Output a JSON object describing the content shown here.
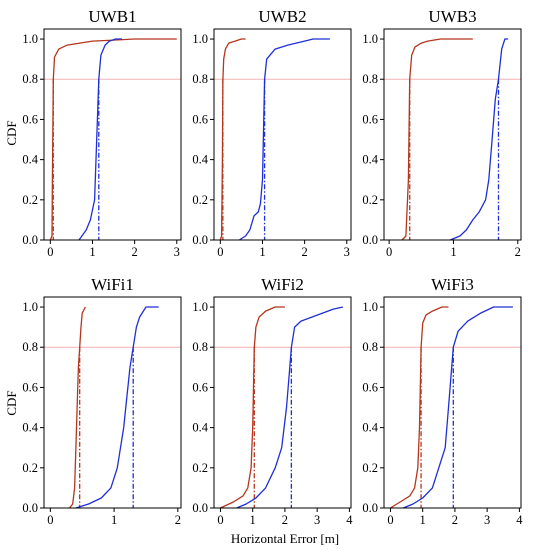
{
  "figure": {
    "ylabel": "CDF",
    "xlabel": "Horizontal Error [m]"
  },
  "colors": {
    "red": "#b5361d",
    "blue": "#1f2fd6",
    "ref": "#f4b4b4"
  },
  "chart_data": [
    {
      "type": "line",
      "title": "UWB1",
      "xlim": [
        -0.15,
        3.1
      ],
      "ylim": [
        0,
        1.05
      ],
      "xticks": [
        0,
        1,
        2,
        3
      ],
      "yticks": [
        0.0,
        0.2,
        0.4,
        0.6,
        0.8,
        1.0
      ],
      "reference_y": 0.8,
      "series": [
        {
          "color": "red",
          "x": [
            0.0,
            0.04,
            0.05,
            0.07,
            0.1,
            0.2,
            0.4,
            0.7,
            1.0,
            1.5,
            2.0,
            3.0
          ],
          "y": [
            0,
            0.02,
            0.3,
            0.8,
            0.91,
            0.95,
            0.97,
            0.98,
            0.99,
            0.995,
            1.0,
            1.0
          ],
          "cdf80": 0.07
        },
        {
          "color": "blue",
          "x": [
            0.68,
            0.75,
            0.85,
            0.95,
            1.05,
            1.1,
            1.15,
            1.2,
            1.3,
            1.4,
            1.55,
            1.7
          ],
          "y": [
            0,
            0.02,
            0.05,
            0.1,
            0.2,
            0.5,
            0.8,
            0.92,
            0.97,
            0.99,
            1.0,
            1.0
          ],
          "cdf80": 1.15
        }
      ]
    },
    {
      "type": "line",
      "title": "UWB2",
      "xlim": [
        -0.15,
        3.1
      ],
      "ylim": [
        0,
        1.05
      ],
      "xticks": [
        0,
        1,
        2,
        3
      ],
      "yticks": [
        0.0,
        0.2,
        0.4,
        0.6,
        0.8,
        1.0
      ],
      "reference_y": 0.8,
      "series": [
        {
          "color": "red",
          "x": [
            0.0,
            0.03,
            0.05,
            0.06,
            0.08,
            0.12,
            0.2,
            0.35,
            0.5,
            0.6
          ],
          "y": [
            0,
            0.02,
            0.4,
            0.8,
            0.9,
            0.95,
            0.98,
            0.99,
            1.0,
            1.0
          ],
          "cdf80": 0.06
        },
        {
          "color": "blue",
          "x": [
            0.45,
            0.6,
            0.7,
            0.8,
            0.9,
            0.95,
            1.0,
            1.05,
            1.1,
            1.3,
            1.6,
            2.0,
            2.2,
            2.6
          ],
          "y": [
            0,
            0.02,
            0.05,
            0.12,
            0.14,
            0.18,
            0.3,
            0.8,
            0.9,
            0.95,
            0.97,
            0.99,
            1.0,
            1.0
          ],
          "cdf80": 1.05
        }
      ]
    },
    {
      "type": "line",
      "title": "UWB3",
      "xlim": [
        -0.08,
        2.05
      ],
      "ylim": [
        0,
        1.05
      ],
      "xticks": [
        0,
        1,
        2
      ],
      "yticks": [
        0.0,
        0.2,
        0.4,
        0.6,
        0.8,
        1.0
      ],
      "reference_y": 0.8,
      "series": [
        {
          "color": "red",
          "x": [
            0.2,
            0.26,
            0.3,
            0.32,
            0.35,
            0.4,
            0.5,
            0.6,
            0.8,
            1.0,
            1.3
          ],
          "y": [
            0,
            0.02,
            0.3,
            0.8,
            0.92,
            0.96,
            0.98,
            0.99,
            1.0,
            1.0,
            1.0
          ],
          "cdf80": 0.32
        },
        {
          "color": "blue",
          "x": [
            0.95,
            1.1,
            1.2,
            1.3,
            1.4,
            1.5,
            1.55,
            1.6,
            1.65,
            1.7,
            1.75,
            1.8,
            1.85
          ],
          "y": [
            0,
            0.02,
            0.05,
            0.1,
            0.14,
            0.2,
            0.3,
            0.5,
            0.7,
            0.8,
            0.95,
            1.0,
            1.0
          ],
          "cdf80": 1.7
        }
      ]
    },
    {
      "type": "line",
      "title": "WiFi1",
      "xlim": [
        -0.1,
        2.05
      ],
      "ylim": [
        0,
        1.05
      ],
      "xticks": [
        0,
        1,
        2
      ],
      "yticks": [
        0.0,
        0.2,
        0.4,
        0.6,
        0.8,
        1.0
      ],
      "reference_y": 0.8,
      "series": [
        {
          "color": "red",
          "x": [
            0.3,
            0.35,
            0.38,
            0.4,
            0.42,
            0.44,
            0.46,
            0.48,
            0.5,
            0.55
          ],
          "y": [
            0,
            0.02,
            0.1,
            0.3,
            0.5,
            0.7,
            0.8,
            0.9,
            0.97,
            1.0
          ],
          "cdf80": 0.46
        },
        {
          "color": "blue",
          "x": [
            0.4,
            0.6,
            0.8,
            0.95,
            1.05,
            1.1,
            1.15,
            1.2,
            1.25,
            1.3,
            1.35,
            1.4,
            1.5,
            1.7
          ],
          "y": [
            0,
            0.02,
            0.05,
            0.1,
            0.2,
            0.3,
            0.4,
            0.55,
            0.7,
            0.8,
            0.9,
            0.95,
            1.0,
            1.0
          ],
          "cdf80": 1.3
        }
      ]
    },
    {
      "type": "line",
      "title": "WiFi2",
      "xlim": [
        -0.2,
        4.05
      ],
      "ylim": [
        0,
        1.05
      ],
      "xticks": [
        0,
        1,
        2,
        3,
        4
      ],
      "yticks": [
        0.0,
        0.2,
        0.4,
        0.6,
        0.8,
        1.0
      ],
      "reference_y": 0.8,
      "series": [
        {
          "color": "red",
          "x": [
            0.0,
            0.4,
            0.7,
            0.85,
            0.95,
            1.0,
            1.05,
            1.1,
            1.2,
            1.4,
            1.7,
            2.0
          ],
          "y": [
            0,
            0.03,
            0.06,
            0.1,
            0.2,
            0.4,
            0.8,
            0.9,
            0.95,
            0.98,
            1.0,
            1.0
          ],
          "cdf80": 1.05
        },
        {
          "color": "blue",
          "x": [
            0.5,
            0.8,
            1.1,
            1.4,
            1.7,
            1.9,
            2.05,
            2.15,
            2.2,
            2.3,
            2.5,
            3.0,
            3.5,
            3.8
          ],
          "y": [
            0,
            0.02,
            0.05,
            0.1,
            0.2,
            0.3,
            0.5,
            0.7,
            0.8,
            0.9,
            0.93,
            0.96,
            0.99,
            1.0
          ],
          "cdf80": 2.2
        }
      ]
    },
    {
      "type": "line",
      "title": "WiFi3",
      "xlim": [
        -0.2,
        4.05
      ],
      "ylim": [
        0,
        1.05
      ],
      "xticks": [
        0,
        1,
        2,
        3,
        4
      ],
      "yticks": [
        0.0,
        0.2,
        0.4,
        0.6,
        0.8,
        1.0
      ],
      "reference_y": 0.8,
      "series": [
        {
          "color": "red",
          "x": [
            0.0,
            0.3,
            0.6,
            0.75,
            0.85,
            0.9,
            0.95,
            1.0,
            1.1,
            1.3,
            1.6,
            1.8
          ],
          "y": [
            0,
            0.03,
            0.06,
            0.1,
            0.2,
            0.4,
            0.8,
            0.92,
            0.96,
            0.98,
            1.0,
            1.0
          ],
          "cdf80": 0.95
        },
        {
          "color": "blue",
          "x": [
            0.4,
            0.7,
            1.0,
            1.3,
            1.5,
            1.7,
            1.8,
            1.9,
            1.95,
            2.1,
            2.4,
            2.8,
            3.2,
            3.8
          ],
          "y": [
            0,
            0.02,
            0.05,
            0.1,
            0.2,
            0.3,
            0.5,
            0.7,
            0.8,
            0.88,
            0.93,
            0.97,
            1.0,
            1.0
          ],
          "cdf80": 1.95
        }
      ]
    }
  ]
}
